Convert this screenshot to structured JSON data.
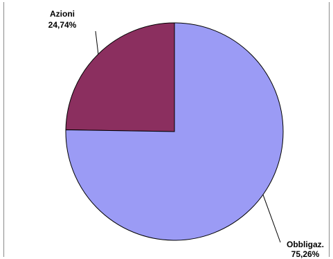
{
  "chart_data": {
    "type": "pie",
    "title": "",
    "slices": [
      {
        "label": "Azioni",
        "value": 24.74,
        "value_label": "24,74%",
        "color": "#8b2f5f"
      },
      {
        "label": "Obbligaz.",
        "value": 75.26,
        "value_label": "75,26%",
        "color": "#9b9bf5"
      }
    ],
    "start_angle_deg": 0,
    "direction": "counterclockwise",
    "legend": "none"
  }
}
